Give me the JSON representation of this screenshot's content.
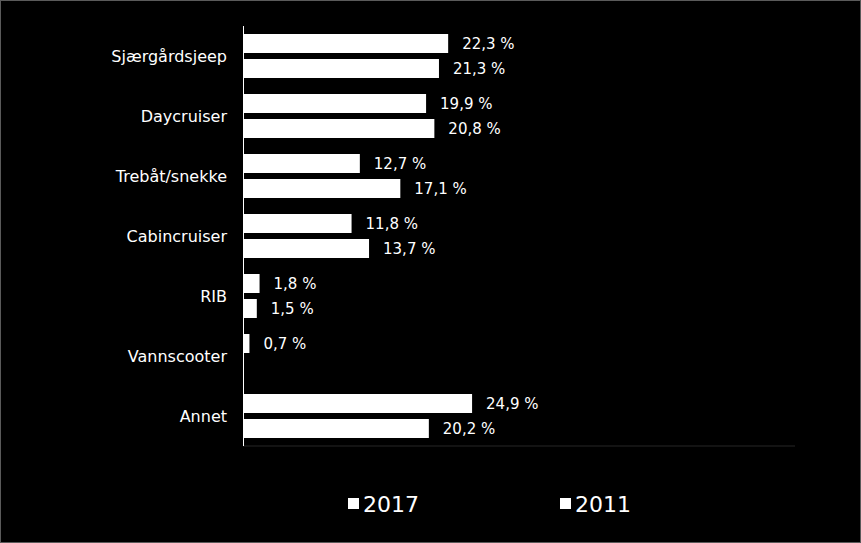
{
  "chart_data": {
    "type": "bar",
    "orientation": "horizontal",
    "categories": [
      "Sjærgårdsjeep",
      "Daycruiser",
      "Trebåt/snekke",
      "Cabincruiser",
      "RIB",
      "Vannscooter",
      "Annet"
    ],
    "series": [
      {
        "name": "2017",
        "color": "#ffffff",
        "values": [
          22.3,
          19.9,
          12.7,
          11.8,
          1.8,
          0.7,
          24.9
        ],
        "value_labels": [
          "22,3 %",
          "19,9 %",
          "12,7 %",
          "11,8 %",
          "1,8 %",
          "0,7 %",
          "24,9 %"
        ]
      },
      {
        "name": "2011",
        "color": "#ffffff",
        "values": [
          21.3,
          20.8,
          17.1,
          13.7,
          1.5,
          null,
          20.2
        ],
        "value_labels": [
          "21,3 %",
          "20,8 %",
          "17,1 %",
          "13,7 %",
          "1,5 %",
          null,
          "20,2 %"
        ]
      }
    ],
    "xlim": [
      0,
      60
    ],
    "data_labels": true,
    "tick_labels": "y",
    "grid": false,
    "legend": "bottom"
  }
}
